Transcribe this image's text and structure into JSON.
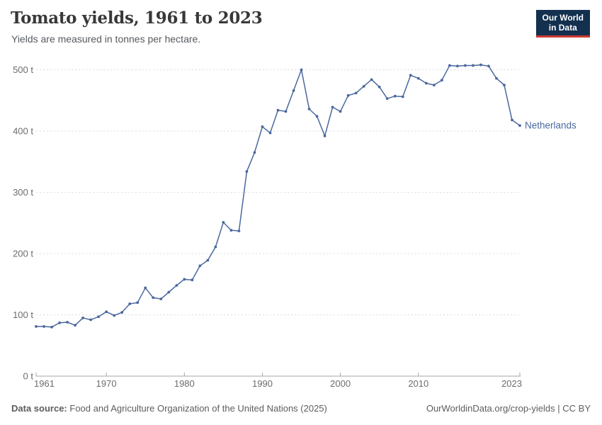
{
  "header": {
    "title": "Tomato yields, 1961 to 2023",
    "subtitle": "Yields are measured in tonnes per hectare.",
    "logo": {
      "line1": "Our World",
      "line2": "in Data",
      "bg_color": "#13304f",
      "accent_color": "#cb3a32"
    }
  },
  "chart_data": {
    "type": "line",
    "title": "Tomato yields, 1961 to 2023",
    "ylabel": "",
    "xlabel": "",
    "unit": "tonnes per hectare",
    "y_tick_suffix": " t",
    "xlim": [
      1961,
      2023
    ],
    "ylim": [
      0,
      500
    ],
    "x_ticks": [
      1961,
      1970,
      1980,
      1990,
      2000,
      2010,
      2023
    ],
    "y_ticks": [
      0,
      100,
      200,
      300,
      400,
      500
    ],
    "grid": "horizontal-dashed",
    "legend_position": "end-of-line-label",
    "x": [
      1961,
      1962,
      1963,
      1964,
      1965,
      1966,
      1967,
      1968,
      1969,
      1970,
      1971,
      1972,
      1973,
      1974,
      1975,
      1976,
      1977,
      1978,
      1979,
      1980,
      1981,
      1982,
      1983,
      1984,
      1985,
      1986,
      1987,
      1988,
      1989,
      1990,
      1991,
      1992,
      1993,
      1994,
      1995,
      1996,
      1997,
      1998,
      1999,
      2000,
      2001,
      2002,
      2003,
      2004,
      2005,
      2006,
      2007,
      2008,
      2009,
      2010,
      2011,
      2012,
      2013,
      2014,
      2015,
      2016,
      2017,
      2018,
      2019,
      2020,
      2021,
      2022,
      2023
    ],
    "series": [
      {
        "name": "Netherlands",
        "color": "#4a689e",
        "values": [
          81,
          81,
          80,
          87,
          88,
          83,
          95,
          92,
          97,
          105,
          99,
          104,
          118,
          120,
          144,
          128,
          126,
          137,
          148,
          158,
          157,
          180,
          189,
          211,
          251,
          238,
          237,
          334,
          365,
          407,
          397,
          434,
          432,
          466,
          500,
          436,
          424,
          392,
          439,
          432,
          458,
          462,
          473,
          484,
          472,
          453,
          457,
          456,
          491,
          486,
          478,
          475,
          483,
          507,
          506,
          507,
          507,
          508,
          506,
          486,
          475,
          418,
          409
        ]
      }
    ],
    "colors": {
      "gridline": "#dcdcdc",
      "axis": "#a5a5a5",
      "tick_label": "#6c6c6c"
    }
  },
  "footer": {
    "source_label": "Data source:",
    "source_text": "Food and Agriculture Organization of the United Nations (2025)",
    "attribution": "OurWorldinData.org/crop-yields | CC BY"
  }
}
